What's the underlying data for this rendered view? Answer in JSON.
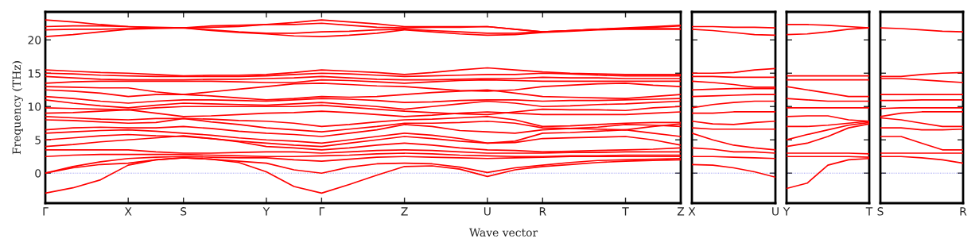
{
  "chart_data": [
    {
      "type": "line",
      "xlabel": "Wave vector",
      "ylabel": "Frequency (THz)",
      "grid": false,
      "marker": "none",
      "line_style": "solid",
      "categories": [
        "Γ",
        null,
        null,
        "X",
        null,
        "S",
        null,
        null,
        "Y",
        null,
        "Γ",
        null,
        null,
        "Z",
        null,
        null,
        "U",
        null,
        "R",
        null,
        null,
        "T",
        null,
        "Z"
      ],
      "ylim": [
        -4.5,
        24.2
      ],
      "yticks": [
        0,
        5,
        10,
        15,
        20
      ],
      "ref_lines": [
        {
          "axis": "y",
          "value": 0,
          "color": "#7777ee",
          "line_style": "dotted"
        }
      ],
      "series": [
        {
          "color": "#ff0000",
          "values": [
            23.0,
            22.7,
            22.3,
            22.0,
            21.8,
            21.8,
            22.1,
            22.2,
            22.3,
            22.6,
            23.0,
            22.7,
            22.4,
            22.0,
            22.0,
            22.0,
            22.0,
            21.6,
            21.2,
            21.4,
            21.6,
            21.8,
            22.0,
            22.2
          ]
        },
        {
          "color": "#ff0000",
          "values": [
            22.0,
            22.1,
            22.1,
            22.0,
            21.9,
            21.8,
            21.9,
            22.0,
            22.3,
            22.3,
            22.5,
            22.2,
            21.9,
            21.8,
            21.9,
            21.9,
            22.0,
            21.6,
            21.2,
            21.4,
            21.6,
            21.7,
            21.9,
            22.1
          ]
        },
        {
          "color": "#ff0000",
          "values": [
            21.5,
            21.6,
            21.6,
            21.7,
            21.8,
            21.8,
            21.5,
            21.2,
            21.0,
            21.0,
            21.2,
            21.3,
            21.5,
            21.6,
            21.4,
            21.2,
            21.0,
            21.0,
            21.2,
            21.4,
            21.6,
            21.7,
            21.7,
            21.7
          ]
        },
        {
          "color": "#ff0000",
          "values": [
            20.5,
            20.8,
            21.2,
            21.6,
            21.7,
            21.8,
            21.4,
            21.1,
            20.9,
            20.6,
            20.5,
            20.7,
            21.0,
            21.5,
            21.2,
            20.9,
            20.7,
            20.8,
            21.1,
            21.3,
            21.5,
            21.6,
            21.6,
            21.6
          ]
        },
        {
          "color": "#ff0000",
          "values": [
            15.5,
            15.3,
            15.1,
            15.0,
            14.8,
            14.6,
            14.7,
            14.7,
            14.8,
            15.1,
            15.5,
            15.3,
            15.1,
            14.8,
            15.1,
            15.5,
            15.8,
            15.5,
            15.2,
            15.0,
            14.9,
            14.8,
            14.8,
            14.8
          ]
        },
        {
          "color": "#ff0000",
          "values": [
            15.0,
            14.9,
            14.7,
            14.6,
            14.5,
            14.5,
            14.5,
            14.5,
            14.6,
            14.8,
            15.0,
            14.9,
            14.7,
            14.5,
            14.6,
            14.7,
            14.8,
            14.8,
            15.0,
            14.9,
            14.7,
            14.6,
            14.6,
            14.6
          ]
        },
        {
          "color": "#ff0000",
          "values": [
            14.5,
            14.3,
            14.1,
            14.0,
            14.0,
            14.0,
            14.1,
            14.1,
            14.2,
            14.3,
            14.5,
            14.3,
            14.1,
            14.0,
            14.0,
            14.1,
            14.2,
            14.2,
            14.4,
            14.3,
            14.3,
            14.2,
            14.2,
            14.2
          ]
        },
        {
          "color": "#ff0000",
          "values": [
            13.5,
            13.7,
            13.8,
            13.8,
            13.8,
            13.8,
            13.8,
            13.7,
            13.6,
            13.6,
            14.0,
            13.9,
            13.7,
            13.5,
            13.7,
            13.9,
            14.0,
            13.9,
            13.8,
            13.8,
            13.8,
            13.8,
            13.8,
            13.8
          ]
        },
        {
          "color": "#ff0000",
          "values": [
            13.0,
            12.9,
            12.8,
            12.8,
            12.2,
            11.8,
            12.2,
            12.6,
            13.0,
            13.4,
            13.5,
            13.3,
            13.1,
            13.0,
            12.7,
            12.4,
            12.3,
            12.5,
            13.0,
            13.2,
            13.4,
            13.5,
            13.2,
            13.0
          ]
        },
        {
          "color": "#ff0000",
          "values": [
            12.5,
            12.3,
            12.0,
            11.5,
            11.8,
            11.8,
            11.6,
            11.3,
            11.0,
            11.2,
            11.5,
            11.4,
            11.5,
            11.8,
            12.1,
            12.3,
            12.5,
            12.0,
            11.5,
            11.4,
            11.3,
            11.2,
            11.5,
            11.8
          ]
        },
        {
          "color": "#ff0000",
          "values": [
            11.5,
            11.2,
            10.8,
            10.5,
            10.8,
            11.0,
            11.0,
            10.9,
            10.8,
            11.0,
            11.2,
            11.1,
            10.9,
            10.6,
            10.7,
            10.9,
            11.0,
            11.0,
            10.8,
            10.9,
            10.9,
            11.0,
            11.1,
            11.2
          ]
        },
        {
          "color": "#ff0000",
          "values": [
            11.0,
            10.5,
            10.1,
            9.8,
            10.2,
            10.5,
            10.4,
            10.3,
            10.2,
            10.4,
            10.6,
            10.3,
            10.0,
            9.6,
            10.0,
            10.4,
            10.8,
            10.5,
            10.0,
            10.1,
            10.3,
            10.4,
            10.6,
            10.8
          ]
        },
        {
          "color": "#ff0000",
          "values": [
            9.8,
            9.7,
            9.6,
            9.5,
            9.8,
            10.0,
            10.0,
            10.0,
            10.0,
            10.0,
            10.2,
            9.9,
            9.6,
            9.3,
            9.1,
            8.9,
            8.8,
            9.2,
            9.6,
            9.5,
            9.5,
            9.4,
            9.8,
            10.0
          ]
        },
        {
          "color": "#ff0000",
          "values": [
            9.0,
            9.1,
            9.3,
            9.5,
            9.0,
            8.5,
            8.6,
            8.8,
            9.0,
            9.1,
            9.3,
            9.1,
            8.8,
            8.5,
            8.7,
            9.0,
            9.2,
            9.0,
            8.8,
            8.8,
            8.8,
            8.8,
            9.0,
            9.2
          ]
        },
        {
          "color": "#ff0000",
          "values": [
            8.5,
            8.3,
            8.1,
            8.0,
            8.2,
            8.2,
            8.1,
            7.9,
            7.8,
            7.5,
            7.0,
            7.3,
            7.7,
            8.0,
            8.1,
            8.3,
            8.5,
            8.0,
            7.0,
            7.1,
            7.3,
            7.5,
            7.6,
            7.6
          ]
        },
        {
          "color": "#ff0000",
          "values": [
            8.0,
            7.9,
            7.7,
            7.5,
            7.6,
            8.2,
            7.7,
            7.3,
            6.8,
            6.5,
            6.2,
            6.6,
            7.0,
            7.5,
            7.5,
            7.6,
            7.8,
            7.5,
            6.8,
            6.7,
            6.6,
            6.5,
            7.0,
            7.4
          ]
        },
        {
          "color": "#ff0000",
          "values": [
            6.5,
            6.8,
            6.9,
            6.8,
            6.8,
            7.0,
            6.7,
            6.3,
            6.0,
            5.8,
            5.5,
            6.0,
            6.5,
            7.3,
            7.0,
            6.4,
            6.2,
            6.0,
            6.5,
            6.7,
            6.9,
            7.3,
            7.2,
            7.0
          ]
        },
        {
          "color": "#ff0000",
          "values": [
            6.0,
            6.2,
            6.4,
            6.5,
            6.3,
            6.0,
            5.7,
            5.3,
            5.0,
            4.8,
            4.5,
            5.0,
            5.5,
            6.0,
            5.7,
            5.2,
            4.5,
            4.8,
            6.0,
            6.1,
            6.3,
            6.5,
            6.0,
            5.5
          ]
        },
        {
          "color": "#ff0000",
          "values": [
            5.0,
            5.3,
            5.6,
            5.8,
            5.6,
            5.5,
            5.2,
            4.8,
            4.5,
            4.2,
            4.0,
            4.5,
            5.0,
            5.5,
            5.2,
            4.8,
            4.5,
            4.6,
            5.2,
            5.3,
            5.4,
            5.5,
            5.0,
            4.2
          ]
        },
        {
          "color": "#ff0000",
          "values": [
            4.0,
            4.3,
            4.7,
            5.0,
            5.3,
            5.6,
            5.2,
            4.7,
            4.0,
            3.8,
            3.5,
            3.8,
            4.2,
            4.5,
            4.2,
            3.8,
            3.5,
            3.4,
            3.2,
            3.3,
            3.4,
            3.5,
            3.6,
            3.8
          ]
        },
        {
          "color": "#ff0000",
          "values": [
            3.5,
            3.5,
            3.5,
            3.5,
            3.2,
            3.0,
            3.0,
            3.1,
            3.2,
            3.2,
            3.0,
            3.2,
            3.4,
            3.5,
            3.4,
            3.2,
            3.0,
            3.0,
            3.0,
            3.1,
            3.1,
            3.2,
            3.2,
            3.2
          ]
        },
        {
          "color": "#ff0000",
          "values": [
            2.5,
            2.7,
            2.8,
            2.8,
            2.8,
            2.8,
            2.7,
            2.6,
            2.5,
            2.5,
            2.6,
            2.7,
            2.9,
            3.0,
            2.9,
            2.7,
            2.6,
            2.5,
            2.5,
            2.6,
            2.6,
            2.7,
            2.7,
            2.7
          ]
        },
        {
          "color": "#ff0000",
          "values": [
            0.0,
            1.0,
            1.7,
            2.2,
            2.4,
            2.5,
            2.4,
            2.3,
            2.3,
            2.0,
            1.8,
            2.1,
            2.4,
            2.5,
            2.4,
            2.3,
            2.2,
            2.3,
            2.4,
            2.5,
            2.5,
            2.5,
            2.5,
            2.5
          ]
        },
        {
          "color": "#ff0000",
          "values": [
            0.0,
            0.8,
            1.3,
            1.5,
            2.0,
            2.3,
            2.1,
            1.8,
            1.5,
            0.5,
            0.0,
            0.9,
            1.4,
            1.5,
            1.4,
            0.9,
            0.1,
            0.8,
            1.2,
            1.6,
            1.9,
            2.0,
            2.1,
            2.2
          ]
        },
        {
          "color": "#ff0000",
          "values": [
            -3.0,
            -2.2,
            -1.0,
            1.2,
            2.0,
            2.3,
            2.1,
            1.6,
            0.2,
            -2.0,
            -3.0,
            -1.7,
            -0.3,
            1.0,
            1.1,
            0.6,
            -0.5,
            0.5,
            1.0,
            1.3,
            1.6,
            1.8,
            1.9,
            2.0
          ]
        }
      ]
    },
    {
      "type": "line",
      "grid": false,
      "marker": "none",
      "line_style": "solid",
      "tick_labels": "x",
      "categories": [
        "X",
        null,
        null,
        null,
        "U"
      ],
      "ylim": [
        -4.5,
        24.2
      ],
      "yticks": [
        0,
        5,
        10,
        15,
        20
      ],
      "ref_lines": [
        {
          "axis": "y",
          "value": 0,
          "color": "#7777ee",
          "line_style": "dotted"
        }
      ],
      "series": [
        {
          "color": "#ff0000",
          "values": [
            22.0,
            22.0,
            21.9,
            21.9,
            21.8
          ]
        },
        {
          "color": "#ff0000",
          "values": [
            21.6,
            21.4,
            21.1,
            20.8,
            20.7
          ]
        },
        {
          "color": "#ff0000",
          "values": [
            15.0,
            15.0,
            15.1,
            15.5,
            15.7
          ]
        },
        {
          "color": "#ff0000",
          "values": [
            14.5,
            14.5,
            14.4,
            14.4,
            14.4
          ]
        },
        {
          "color": "#ff0000",
          "values": [
            13.8,
            13.6,
            13.3,
            12.9,
            12.9
          ]
        },
        {
          "color": "#ff0000",
          "values": [
            12.5,
            12.6,
            12.7,
            12.7,
            12.7
          ]
        },
        {
          "color": "#ff0000",
          "values": [
            11.5,
            11.6,
            11.7,
            11.8,
            11.8
          ]
        },
        {
          "color": "#ff0000",
          "values": [
            9.8,
            10.3,
            10.6,
            10.8,
            10.8
          ]
        },
        {
          "color": "#ff0000",
          "values": [
            9.0,
            9.0,
            9.2,
            9.2,
            9.2
          ]
        },
        {
          "color": "#ff0000",
          "values": [
            7.8,
            7.4,
            7.3,
            7.6,
            7.8
          ]
        },
        {
          "color": "#ff0000",
          "values": [
            6.8,
            6.6,
            6.6,
            6.6,
            6.6
          ]
        },
        {
          "color": "#ff0000",
          "values": [
            6.0,
            5.0,
            4.2,
            3.8,
            3.5
          ]
        },
        {
          "color": "#ff0000",
          "values": [
            3.8,
            3.6,
            3.2,
            3.2,
            3.0
          ]
        },
        {
          "color": "#ff0000",
          "values": [
            2.5,
            2.5,
            2.4,
            2.3,
            2.2
          ]
        },
        {
          "color": "#ff0000",
          "values": [
            1.3,
            1.2,
            0.8,
            0.2,
            -0.6
          ]
        }
      ]
    },
    {
      "type": "line",
      "grid": false,
      "marker": "none",
      "line_style": "solid",
      "tick_labels": "x",
      "categories": [
        "Y",
        null,
        null,
        null,
        "T"
      ],
      "ylim": [
        -4.5,
        24.2
      ],
      "yticks": [
        0,
        5,
        10,
        15,
        20
      ],
      "ref_lines": [
        {
          "axis": "y",
          "value": 0,
          "color": "#7777ee",
          "line_style": "dotted"
        }
      ],
      "series": [
        {
          "color": "#ff0000",
          "values": [
            22.3,
            22.3,
            22.2,
            22.0,
            21.8
          ]
        },
        {
          "color": "#ff0000",
          "values": [
            20.8,
            20.9,
            21.2,
            21.6,
            21.8
          ]
        },
        {
          "color": "#ff0000",
          "values": [
            14.6,
            14.6,
            14.6,
            14.6,
            14.6
          ]
        },
        {
          "color": "#ff0000",
          "values": [
            14.0,
            14.0,
            14.0,
            14.0,
            14.0
          ]
        },
        {
          "color": "#ff0000",
          "values": [
            13.0,
            12.5,
            12.0,
            11.5,
            11.5
          ]
        },
        {
          "color": "#ff0000",
          "values": [
            11.2,
            11.0,
            10.8,
            10.8,
            10.8
          ]
        },
        {
          "color": "#ff0000",
          "values": [
            9.8,
            9.8,
            9.8,
            9.8,
            9.8
          ]
        },
        {
          "color": "#ff0000",
          "values": [
            8.5,
            8.6,
            8.6,
            8.0,
            7.8
          ]
        },
        {
          "color": "#ff0000",
          "values": [
            7.0,
            7.0,
            7.2,
            7.5,
            7.8
          ]
        },
        {
          "color": "#ff0000",
          "values": [
            5.0,
            5.8,
            6.5,
            7.2,
            7.6
          ]
        },
        {
          "color": "#ff0000",
          "values": [
            4.0,
            4.5,
            5.5,
            6.8,
            7.4
          ]
        },
        {
          "color": "#ff0000",
          "values": [
            3.0,
            3.0,
            3.0,
            3.0,
            2.9
          ]
        },
        {
          "color": "#ff0000",
          "values": [
            2.5,
            2.5,
            2.5,
            2.5,
            2.4
          ]
        },
        {
          "color": "#ff0000",
          "values": [
            -2.3,
            -1.5,
            1.2,
            2.0,
            2.2
          ]
        }
      ]
    },
    {
      "type": "line",
      "grid": false,
      "marker": "none",
      "line_style": "solid",
      "tick_labels": "x",
      "categories": [
        "S",
        null,
        null,
        null,
        "R"
      ],
      "ylim": [
        -4.5,
        24.2
      ],
      "yticks": [
        0,
        5,
        10,
        15,
        20
      ],
      "ref_lines": [
        {
          "axis": "y",
          "value": 0,
          "color": "#7777ee",
          "line_style": "dotted"
        }
      ],
      "series": [
        {
          "color": "#ff0000",
          "values": [
            21.8,
            21.7,
            21.5,
            21.3,
            21.2
          ]
        },
        {
          "color": "#ff0000",
          "values": [
            14.5,
            14.5,
            14.8,
            15.0,
            15.1
          ]
        },
        {
          "color": "#ff0000",
          "values": [
            14.2,
            14.2,
            14.0,
            13.8,
            13.6
          ]
        },
        {
          "color": "#ff0000",
          "values": [
            11.8,
            11.8,
            11.8,
            11.8,
            11.8
          ]
        },
        {
          "color": "#ff0000",
          "values": [
            10.9,
            10.9,
            11.0,
            11.0,
            11.0
          ]
        },
        {
          "color": "#ff0000",
          "values": [
            9.7,
            9.8,
            9.8,
            9.8,
            9.8
          ]
        },
        {
          "color": "#ff0000",
          "values": [
            8.5,
            9.0,
            9.2,
            9.2,
            9.2
          ]
        },
        {
          "color": "#ff0000",
          "values": [
            8.3,
            8.0,
            7.5,
            7.0,
            7.0
          ]
        },
        {
          "color": "#ff0000",
          "values": [
            6.8,
            6.8,
            6.5,
            6.5,
            6.6
          ]
        },
        {
          "color": "#ff0000",
          "values": [
            5.5,
            5.5,
            4.5,
            3.5,
            3.5
          ]
        },
        {
          "color": "#ff0000",
          "values": [
            3.0,
            3.0,
            3.0,
            3.0,
            3.0
          ]
        },
        {
          "color": "#ff0000",
          "values": [
            2.5,
            2.5,
            2.3,
            2.0,
            1.5
          ]
        }
      ]
    }
  ]
}
